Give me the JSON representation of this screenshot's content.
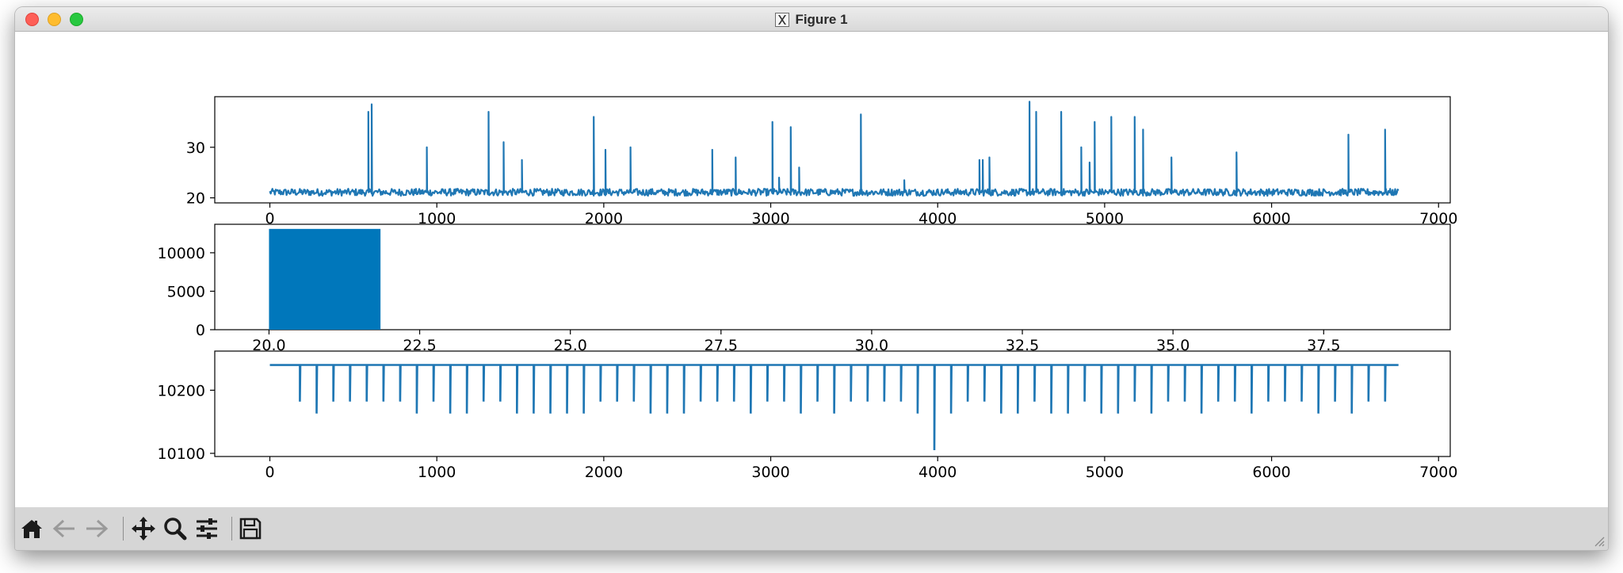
{
  "window": {
    "title": "Figure 1"
  },
  "toolbar": {
    "buttons": [
      {
        "name": "home-icon"
      },
      {
        "name": "back-icon"
      },
      {
        "name": "forward-icon"
      },
      {
        "name": "pan-icon"
      },
      {
        "name": "zoom-icon"
      },
      {
        "name": "configure-subplots-icon"
      },
      {
        "name": "save-icon"
      }
    ]
  },
  "colors": {
    "series": "#1f77b4",
    "bar": "#0077bb",
    "toolbar_bg": "#d6d6d6"
  },
  "chart_data": [
    {
      "type": "line",
      "title": "",
      "xlabel": "",
      "ylabel": "",
      "xlim": [
        -330,
        7070
      ],
      "ylim": [
        19,
        40
      ],
      "xticks": [
        0,
        1000,
        2000,
        3000,
        4000,
        5000,
        6000,
        7000
      ],
      "yticks": [
        20,
        30
      ],
      "baseline": 21.1,
      "x_range": [
        0,
        6760
      ],
      "spikes": [
        {
          "x": 590,
          "y": 37
        },
        {
          "x": 610,
          "y": 38.5
        },
        {
          "x": 940,
          "y": 30
        },
        {
          "x": 1310,
          "y": 37
        },
        {
          "x": 1400,
          "y": 31
        },
        {
          "x": 1510,
          "y": 27.5
        },
        {
          "x": 1940,
          "y": 36
        },
        {
          "x": 2010,
          "y": 29.5
        },
        {
          "x": 2160,
          "y": 30
        },
        {
          "x": 2650,
          "y": 29.5
        },
        {
          "x": 2790,
          "y": 28
        },
        {
          "x": 3010,
          "y": 35
        },
        {
          "x": 3050,
          "y": 24
        },
        {
          "x": 3120,
          "y": 34
        },
        {
          "x": 3170,
          "y": 26
        },
        {
          "x": 3540,
          "y": 36.5
        },
        {
          "x": 3800,
          "y": 23.5
        },
        {
          "x": 4250,
          "y": 27.5
        },
        {
          "x": 4270,
          "y": 27.5
        },
        {
          "x": 4310,
          "y": 28
        },
        {
          "x": 4550,
          "y": 39
        },
        {
          "x": 4590,
          "y": 37
        },
        {
          "x": 4740,
          "y": 37
        },
        {
          "x": 4860,
          "y": 30
        },
        {
          "x": 4910,
          "y": 27
        },
        {
          "x": 4940,
          "y": 35
        },
        {
          "x": 5040,
          "y": 36
        },
        {
          "x": 5180,
          "y": 36
        },
        {
          "x": 5230,
          "y": 33.5
        },
        {
          "x": 5400,
          "y": 28
        },
        {
          "x": 5790,
          "y": 29
        },
        {
          "x": 6460,
          "y": 32.5
        },
        {
          "x": 6680,
          "y": 33.5
        }
      ]
    },
    {
      "type": "bar",
      "title": "",
      "xlabel": "",
      "ylabel": "",
      "xlim": [
        19.1,
        39.6
      ],
      "ylim": [
        0,
        13700
      ],
      "xticks": [
        "20.0",
        "22.5",
        "25.0",
        "27.5",
        "30.0",
        "32.5",
        "35.0",
        "37.5"
      ],
      "yticks": [
        0,
        5000,
        10000
      ],
      "bins": [
        {
          "x0": 20.0,
          "x1": 21.85,
          "value": 13100
        }
      ]
    },
    {
      "type": "line",
      "title": "",
      "xlabel": "",
      "ylabel": "",
      "xlim": [
        -330,
        7070
      ],
      "ylim": [
        10095,
        10262
      ],
      "xticks": [
        0,
        1000,
        2000,
        3000,
        4000,
        5000,
        6000,
        7000
      ],
      "yticks": [
        10100,
        10200
      ],
      "baseline": 10240,
      "x_range": [
        0,
        6760
      ],
      "drops": [
        {
          "x": 180,
          "y": 10182
        },
        {
          "x": 280,
          "y": 10163
        },
        {
          "x": 380,
          "y": 10182
        },
        {
          "x": 480,
          "y": 10182
        },
        {
          "x": 580,
          "y": 10182
        },
        {
          "x": 680,
          "y": 10182
        },
        {
          "x": 780,
          "y": 10182
        },
        {
          "x": 880,
          "y": 10163
        },
        {
          "x": 980,
          "y": 10182
        },
        {
          "x": 1080,
          "y": 10163
        },
        {
          "x": 1180,
          "y": 10163
        },
        {
          "x": 1280,
          "y": 10182
        },
        {
          "x": 1380,
          "y": 10182
        },
        {
          "x": 1480,
          "y": 10163
        },
        {
          "x": 1580,
          "y": 10163
        },
        {
          "x": 1680,
          "y": 10163
        },
        {
          "x": 1780,
          "y": 10163
        },
        {
          "x": 1880,
          "y": 10163
        },
        {
          "x": 1980,
          "y": 10182
        },
        {
          "x": 2080,
          "y": 10182
        },
        {
          "x": 2180,
          "y": 10182
        },
        {
          "x": 2280,
          "y": 10163
        },
        {
          "x": 2380,
          "y": 10163
        },
        {
          "x": 2480,
          "y": 10163
        },
        {
          "x": 2580,
          "y": 10182
        },
        {
          "x": 2680,
          "y": 10182
        },
        {
          "x": 2780,
          "y": 10182
        },
        {
          "x": 2880,
          "y": 10163
        },
        {
          "x": 2980,
          "y": 10182
        },
        {
          "x": 3080,
          "y": 10182
        },
        {
          "x": 3180,
          "y": 10163
        },
        {
          "x": 3280,
          "y": 10182
        },
        {
          "x": 3380,
          "y": 10163
        },
        {
          "x": 3480,
          "y": 10182
        },
        {
          "x": 3580,
          "y": 10182
        },
        {
          "x": 3680,
          "y": 10182
        },
        {
          "x": 3780,
          "y": 10182
        },
        {
          "x": 3880,
          "y": 10163
        },
        {
          "x": 3980,
          "y": 10105
        },
        {
          "x": 4080,
          "y": 10163
        },
        {
          "x": 4180,
          "y": 10182
        },
        {
          "x": 4280,
          "y": 10182
        },
        {
          "x": 4380,
          "y": 10163
        },
        {
          "x": 4480,
          "y": 10163
        },
        {
          "x": 4580,
          "y": 10182
        },
        {
          "x": 4680,
          "y": 10163
        },
        {
          "x": 4780,
          "y": 10163
        },
        {
          "x": 4880,
          "y": 10182
        },
        {
          "x": 4980,
          "y": 10163
        },
        {
          "x": 5080,
          "y": 10163
        },
        {
          "x": 5180,
          "y": 10182
        },
        {
          "x": 5280,
          "y": 10163
        },
        {
          "x": 5380,
          "y": 10182
        },
        {
          "x": 5480,
          "y": 10182
        },
        {
          "x": 5580,
          "y": 10163
        },
        {
          "x": 5680,
          "y": 10182
        },
        {
          "x": 5780,
          "y": 10182
        },
        {
          "x": 5880,
          "y": 10163
        },
        {
          "x": 5980,
          "y": 10182
        },
        {
          "x": 6080,
          "y": 10182
        },
        {
          "x": 6180,
          "y": 10182
        },
        {
          "x": 6280,
          "y": 10163
        },
        {
          "x": 6380,
          "y": 10182
        },
        {
          "x": 6480,
          "y": 10163
        },
        {
          "x": 6580,
          "y": 10182
        },
        {
          "x": 6680,
          "y": 10182
        }
      ]
    }
  ]
}
